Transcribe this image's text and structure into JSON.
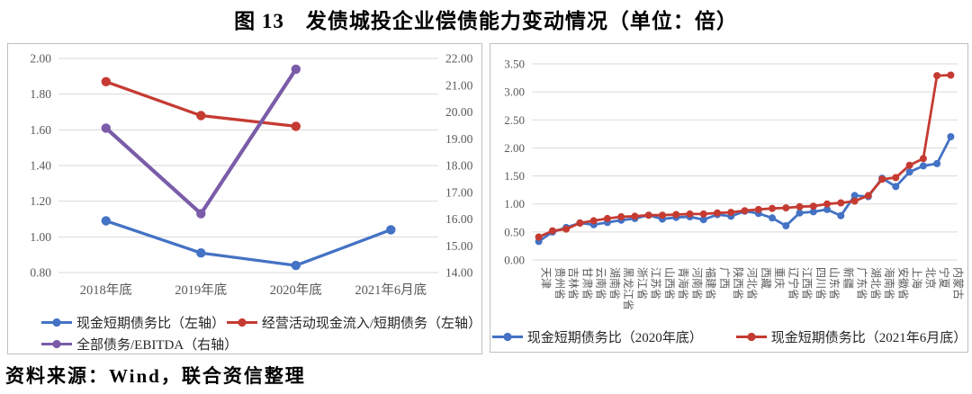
{
  "title": "图 13　发债城投企业偿债能力变动情况（单位：倍）",
  "source": "资料来源：Wind，联合资信整理",
  "colors": {
    "blue": "#4472C4",
    "red": "#C53B32",
    "purple": "#7A5CA8",
    "grid": "#D9D9D9",
    "tick_text": "#595959",
    "legend_text": "#262626",
    "panel_border": "#BFBFBF"
  },
  "chart_data": [
    {
      "type": "line",
      "panel": "left",
      "categories": [
        "2018年底",
        "2019年底",
        "2020年底",
        "2021年6月底"
      ],
      "left_axis": {
        "min": 0.8,
        "max": 2.0,
        "step": 0.2,
        "ticks": [
          "2.00",
          "1.80",
          "1.60",
          "1.40",
          "1.20",
          "1.00",
          "0.80"
        ]
      },
      "right_axis": {
        "min": 14,
        "max": 22,
        "step": 1,
        "ticks": [
          "22.00",
          "21.00",
          "20.00",
          "19.00",
          "18.00",
          "17.00",
          "16.00",
          "15.00",
          "14.00"
        ]
      },
      "grid": true,
      "legend_position": "bottom-left-two-rows",
      "series": [
        {
          "name": "现金短期债务比（左轴）",
          "color": "blue",
          "axis": "left",
          "values": [
            1.09,
            0.91,
            0.84,
            1.04
          ]
        },
        {
          "name": "经营活动现金流入/短期债务（左轴）",
          "color": "red",
          "axis": "left",
          "values": [
            1.87,
            1.68,
            1.62,
            null
          ]
        },
        {
          "name": "全部债务/EBITDA（右轴）",
          "color": "purple",
          "axis": "right",
          "values": [
            19.4,
            16.2,
            21.6,
            null
          ]
        }
      ]
    },
    {
      "type": "line",
      "panel": "right",
      "categories": [
        "天津",
        "贵州省",
        "吉林省",
        "甘肃省",
        "云南省",
        "湖南省",
        "黑龙江省",
        "浙江省",
        "江苏省",
        "山西省",
        "青海省",
        "河南省",
        "福建省",
        "广西",
        "陕西省",
        "河北省",
        "西藏",
        "重庆",
        "辽宁省",
        "江西省",
        "四川省",
        "山东省",
        "新疆",
        "广东省",
        "湖北省",
        "海南省",
        "安徽省",
        "上海",
        "北京",
        "宁夏",
        "内蒙古"
      ],
      "left_axis": {
        "min": 0,
        "max": 3.5,
        "step": 0.5,
        "ticks": [
          "3.50",
          "3.00",
          "2.50",
          "2.00",
          "1.50",
          "1.00",
          "0.50",
          "0.00"
        ]
      },
      "grid": true,
      "legend_position": "bottom-center",
      "series": [
        {
          "name": "现金短期债务比（2020年底）",
          "color": "blue",
          "axis": "left",
          "values": [
            0.33,
            0.5,
            0.58,
            0.66,
            0.63,
            0.67,
            0.71,
            0.74,
            0.8,
            0.73,
            0.76,
            0.77,
            0.72,
            0.81,
            0.78,
            0.87,
            0.83,
            0.75,
            0.61,
            0.84,
            0.86,
            0.9,
            0.79,
            1.15,
            1.13,
            1.46,
            1.31,
            1.57,
            1.68,
            1.72,
            2.2
          ]
        },
        {
          "name": "现金短期债务比（2021年6月底）",
          "color": "red",
          "axis": "left",
          "values": [
            0.41,
            0.52,
            0.55,
            0.66,
            0.7,
            0.74,
            0.77,
            0.78,
            0.8,
            0.8,
            0.81,
            0.82,
            0.82,
            0.84,
            0.85,
            0.88,
            0.9,
            0.92,
            0.93,
            0.95,
            0.96,
            1.0,
            1.02,
            1.05,
            1.15,
            1.44,
            1.47,
            1.69,
            1.81,
            3.29,
            3.3
          ]
        }
      ]
    }
  ]
}
